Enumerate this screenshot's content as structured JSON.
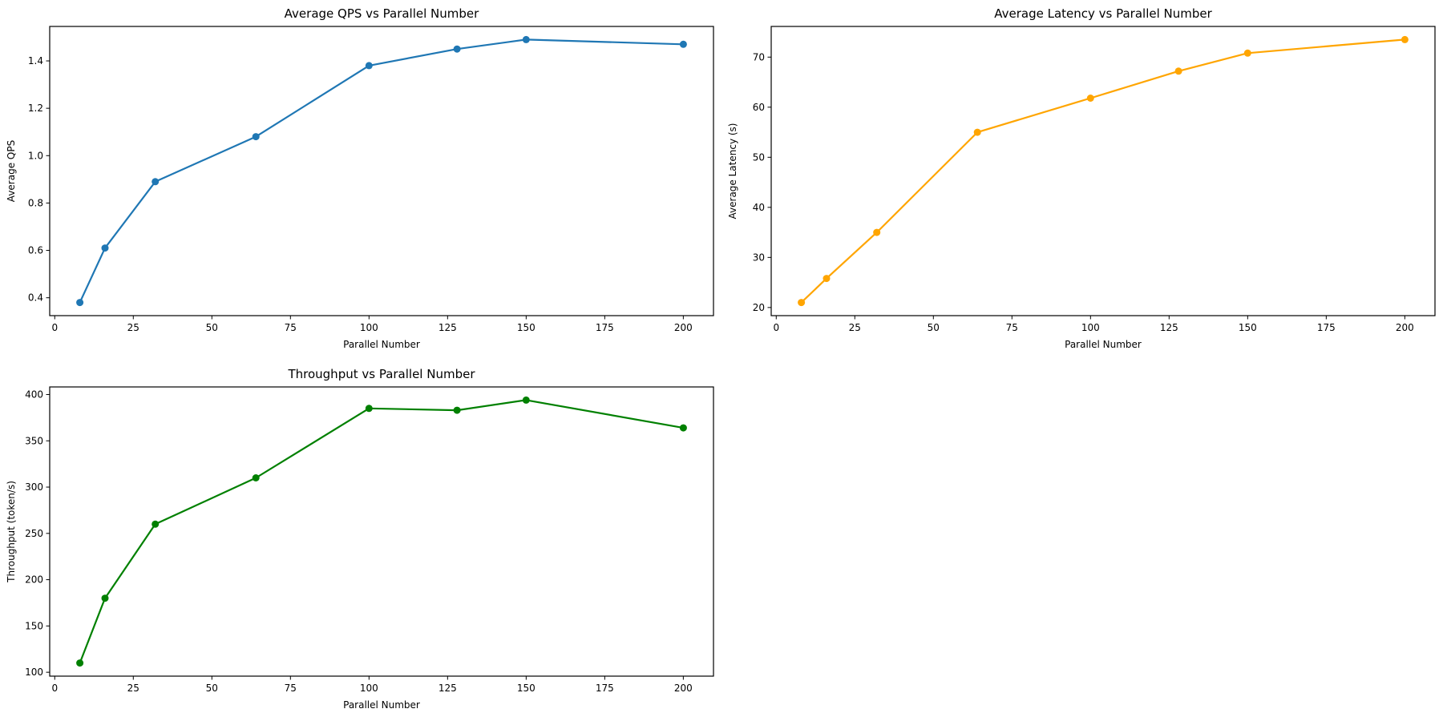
{
  "figure": {
    "background_color": "#ffffff",
    "grid_rows": 2,
    "grid_cols": 2,
    "empty_cell": "bottom-right"
  },
  "chart_data": [
    {
      "id": "avg-qps",
      "type": "line",
      "title": "Average QPS vs Parallel Number",
      "xlabel": "Parallel Number",
      "ylabel": "Average QPS",
      "line_color": "#1f77b4",
      "marker": "circle",
      "grid": false,
      "legend": null,
      "x": [
        8,
        16,
        32,
        64,
        100,
        128,
        150,
        200
      ],
      "y": [
        0.38,
        0.61,
        0.89,
        1.08,
        1.38,
        1.45,
        1.49,
        1.47
      ],
      "xlim": [
        -1.6,
        209.6
      ],
      "ylim": [
        0.3245,
        1.5455
      ],
      "xticks": [
        0,
        25,
        50,
        75,
        100,
        125,
        150,
        175,
        200
      ],
      "xtick_labels": [
        "0",
        "25",
        "50",
        "75",
        "100",
        "125",
        "150",
        "175",
        "200"
      ],
      "yticks": [
        0.4,
        0.6,
        0.8,
        1.0,
        1.2,
        1.4
      ],
      "ytick_labels": [
        "0.4",
        "0.6",
        "0.8",
        "1.0",
        "1.2",
        "1.4"
      ]
    },
    {
      "id": "avg-latency",
      "type": "line",
      "title": "Average Latency vs Parallel Number",
      "xlabel": "Parallel Number",
      "ylabel": "Average Latency (s)",
      "line_color": "#ffa500",
      "marker": "circle",
      "grid": false,
      "legend": null,
      "x": [
        8,
        16,
        32,
        64,
        100,
        128,
        150,
        200
      ],
      "y": [
        21,
        25.8,
        35,
        55,
        61.8,
        67.2,
        70.8,
        73.5
      ],
      "xlim": [
        -1.6,
        209.6
      ],
      "ylim": [
        18.375,
        76.125
      ],
      "xticks": [
        0,
        25,
        50,
        75,
        100,
        125,
        150,
        175,
        200
      ],
      "xtick_labels": [
        "0",
        "25",
        "50",
        "75",
        "100",
        "125",
        "150",
        "175",
        "200"
      ],
      "yticks": [
        20,
        30,
        40,
        50,
        60,
        70
      ],
      "ytick_labels": [
        "20",
        "30",
        "40",
        "50",
        "60",
        "70"
      ]
    },
    {
      "id": "throughput",
      "type": "line",
      "title": "Throughput vs Parallel Number",
      "xlabel": "Parallel Number",
      "ylabel": "Throughput (token/s)",
      "line_color": "#008000",
      "marker": "circle",
      "grid": false,
      "legend": null,
      "x": [
        8,
        16,
        32,
        64,
        100,
        128,
        150,
        200
      ],
      "y": [
        110,
        180,
        260,
        310,
        385,
        383,
        394,
        364
      ],
      "xlim": [
        -1.6,
        209.6
      ],
      "ylim": [
        95.8,
        408.2
      ],
      "xticks": [
        0,
        25,
        50,
        75,
        100,
        125,
        150,
        175,
        200
      ],
      "xtick_labels": [
        "0",
        "25",
        "50",
        "75",
        "100",
        "125",
        "150",
        "175",
        "200"
      ],
      "yticks": [
        100,
        150,
        200,
        250,
        300,
        350,
        400
      ],
      "ytick_labels": [
        "100",
        "150",
        "200",
        "250",
        "300",
        "350",
        "400"
      ]
    }
  ]
}
